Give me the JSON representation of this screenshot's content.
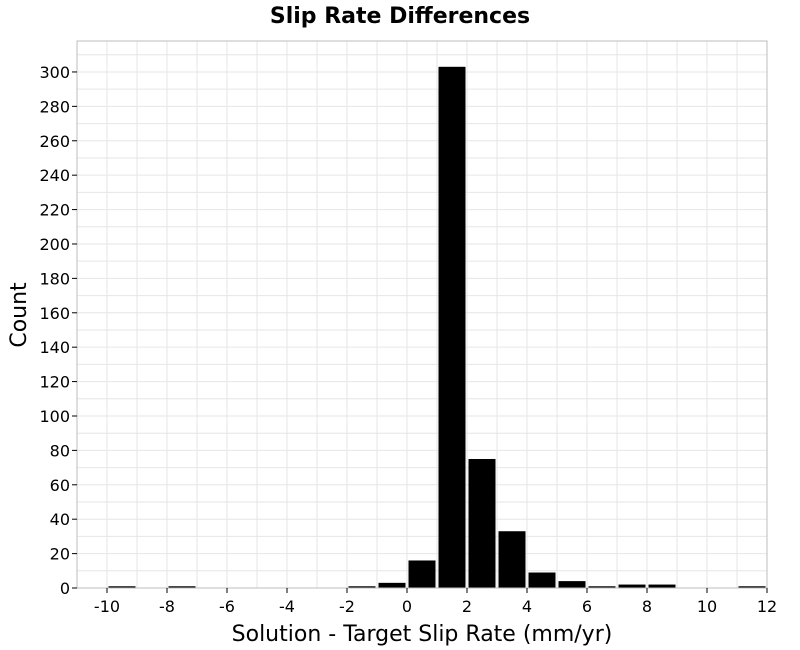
{
  "chart_data": {
    "type": "bar",
    "title": "Slip Rate Differences",
    "xlabel": "Solution - Target Slip Rate (mm/yr)",
    "ylabel": "Count",
    "xlim": [
      -11,
      12
    ],
    "ylim": [
      0,
      318
    ],
    "xticks": [
      -10,
      -8,
      -6,
      -4,
      -2,
      0,
      2,
      4,
      6,
      8,
      10,
      12
    ],
    "yticks": [
      0,
      20,
      40,
      60,
      80,
      100,
      120,
      140,
      160,
      180,
      200,
      220,
      240,
      260,
      280,
      300
    ],
    "grid": true,
    "bar_color": "#000000",
    "bin_width": 1,
    "bins": [
      {
        "x": -10,
        "count": 1
      },
      {
        "x": -8,
        "count": 1
      },
      {
        "x": -2,
        "count": 1
      },
      {
        "x": -1,
        "count": 3
      },
      {
        "x": 0,
        "count": 16
      },
      {
        "x": 1,
        "count": 303
      },
      {
        "x": 2,
        "count": 75
      },
      {
        "x": 3,
        "count": 33
      },
      {
        "x": 4,
        "count": 9
      },
      {
        "x": 5,
        "count": 4
      },
      {
        "x": 6,
        "count": 1
      },
      {
        "x": 7,
        "count": 2
      },
      {
        "x": 8,
        "count": 2
      },
      {
        "x": 11,
        "count": 1
      }
    ]
  }
}
